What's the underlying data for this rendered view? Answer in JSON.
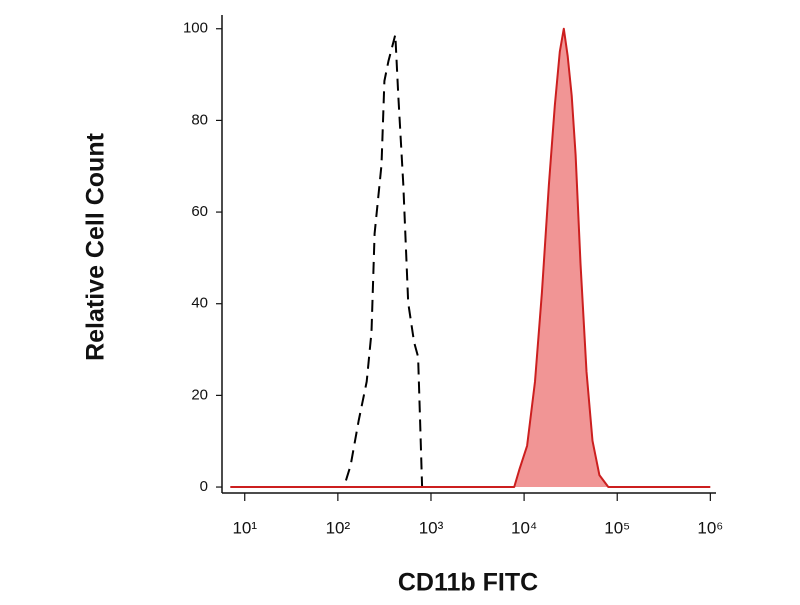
{
  "chart_data": {
    "type": "histogram-overlay",
    "x_label": "CD11b FITC",
    "y_label": "Relative Cell Count",
    "xscale": "log",
    "xlim": [
      5.7,
      1150000
    ],
    "ylim": [
      -1.3,
      103
    ],
    "xticks": [
      {
        "value": 10,
        "label": "10¹"
      },
      {
        "value": 100,
        "label": "10²"
      },
      {
        "value": 1000,
        "label": "10³"
      },
      {
        "value": 10000,
        "label": "10⁴"
      },
      {
        "value": 100000,
        "label": "10⁵"
      },
      {
        "value": 1000000,
        "label": "10⁶"
      }
    ],
    "yticks": [
      0,
      20,
      40,
      60,
      80,
      100
    ],
    "series": [
      {
        "style": "dashed",
        "color": "#000000",
        "x": [
          86,
          116,
          137,
          167,
          204,
          230,
          248,
          294,
          316,
          349,
          414,
          446,
          504,
          569,
          659,
          727,
          764,
          802
        ],
        "values": [
          0,
          0,
          4.7,
          14.4,
          23,
          33.8,
          55.3,
          70.3,
          88.6,
          92.9,
          98.7,
          85.4,
          66,
          40.2,
          31.6,
          28.4,
          14.4,
          0
        ]
      },
      {
        "style": "filled",
        "color": "#cc1f1f",
        "fill": "#f08a8a",
        "x": [
          7,
          7830,
          8850,
          10770,
          13100,
          15530,
          18450,
          21380,
          24160,
          26670,
          29400,
          32430,
          35730,
          40370,
          46770,
          54200,
          64390,
          80100,
          1000000
        ],
        "values": [
          0,
          0,
          3.7,
          9,
          23,
          42.4,
          66,
          83.2,
          95,
          100,
          94,
          85.4,
          72.5,
          48.8,
          25.2,
          10.1,
          2.6,
          0,
          0
        ]
      }
    ]
  }
}
